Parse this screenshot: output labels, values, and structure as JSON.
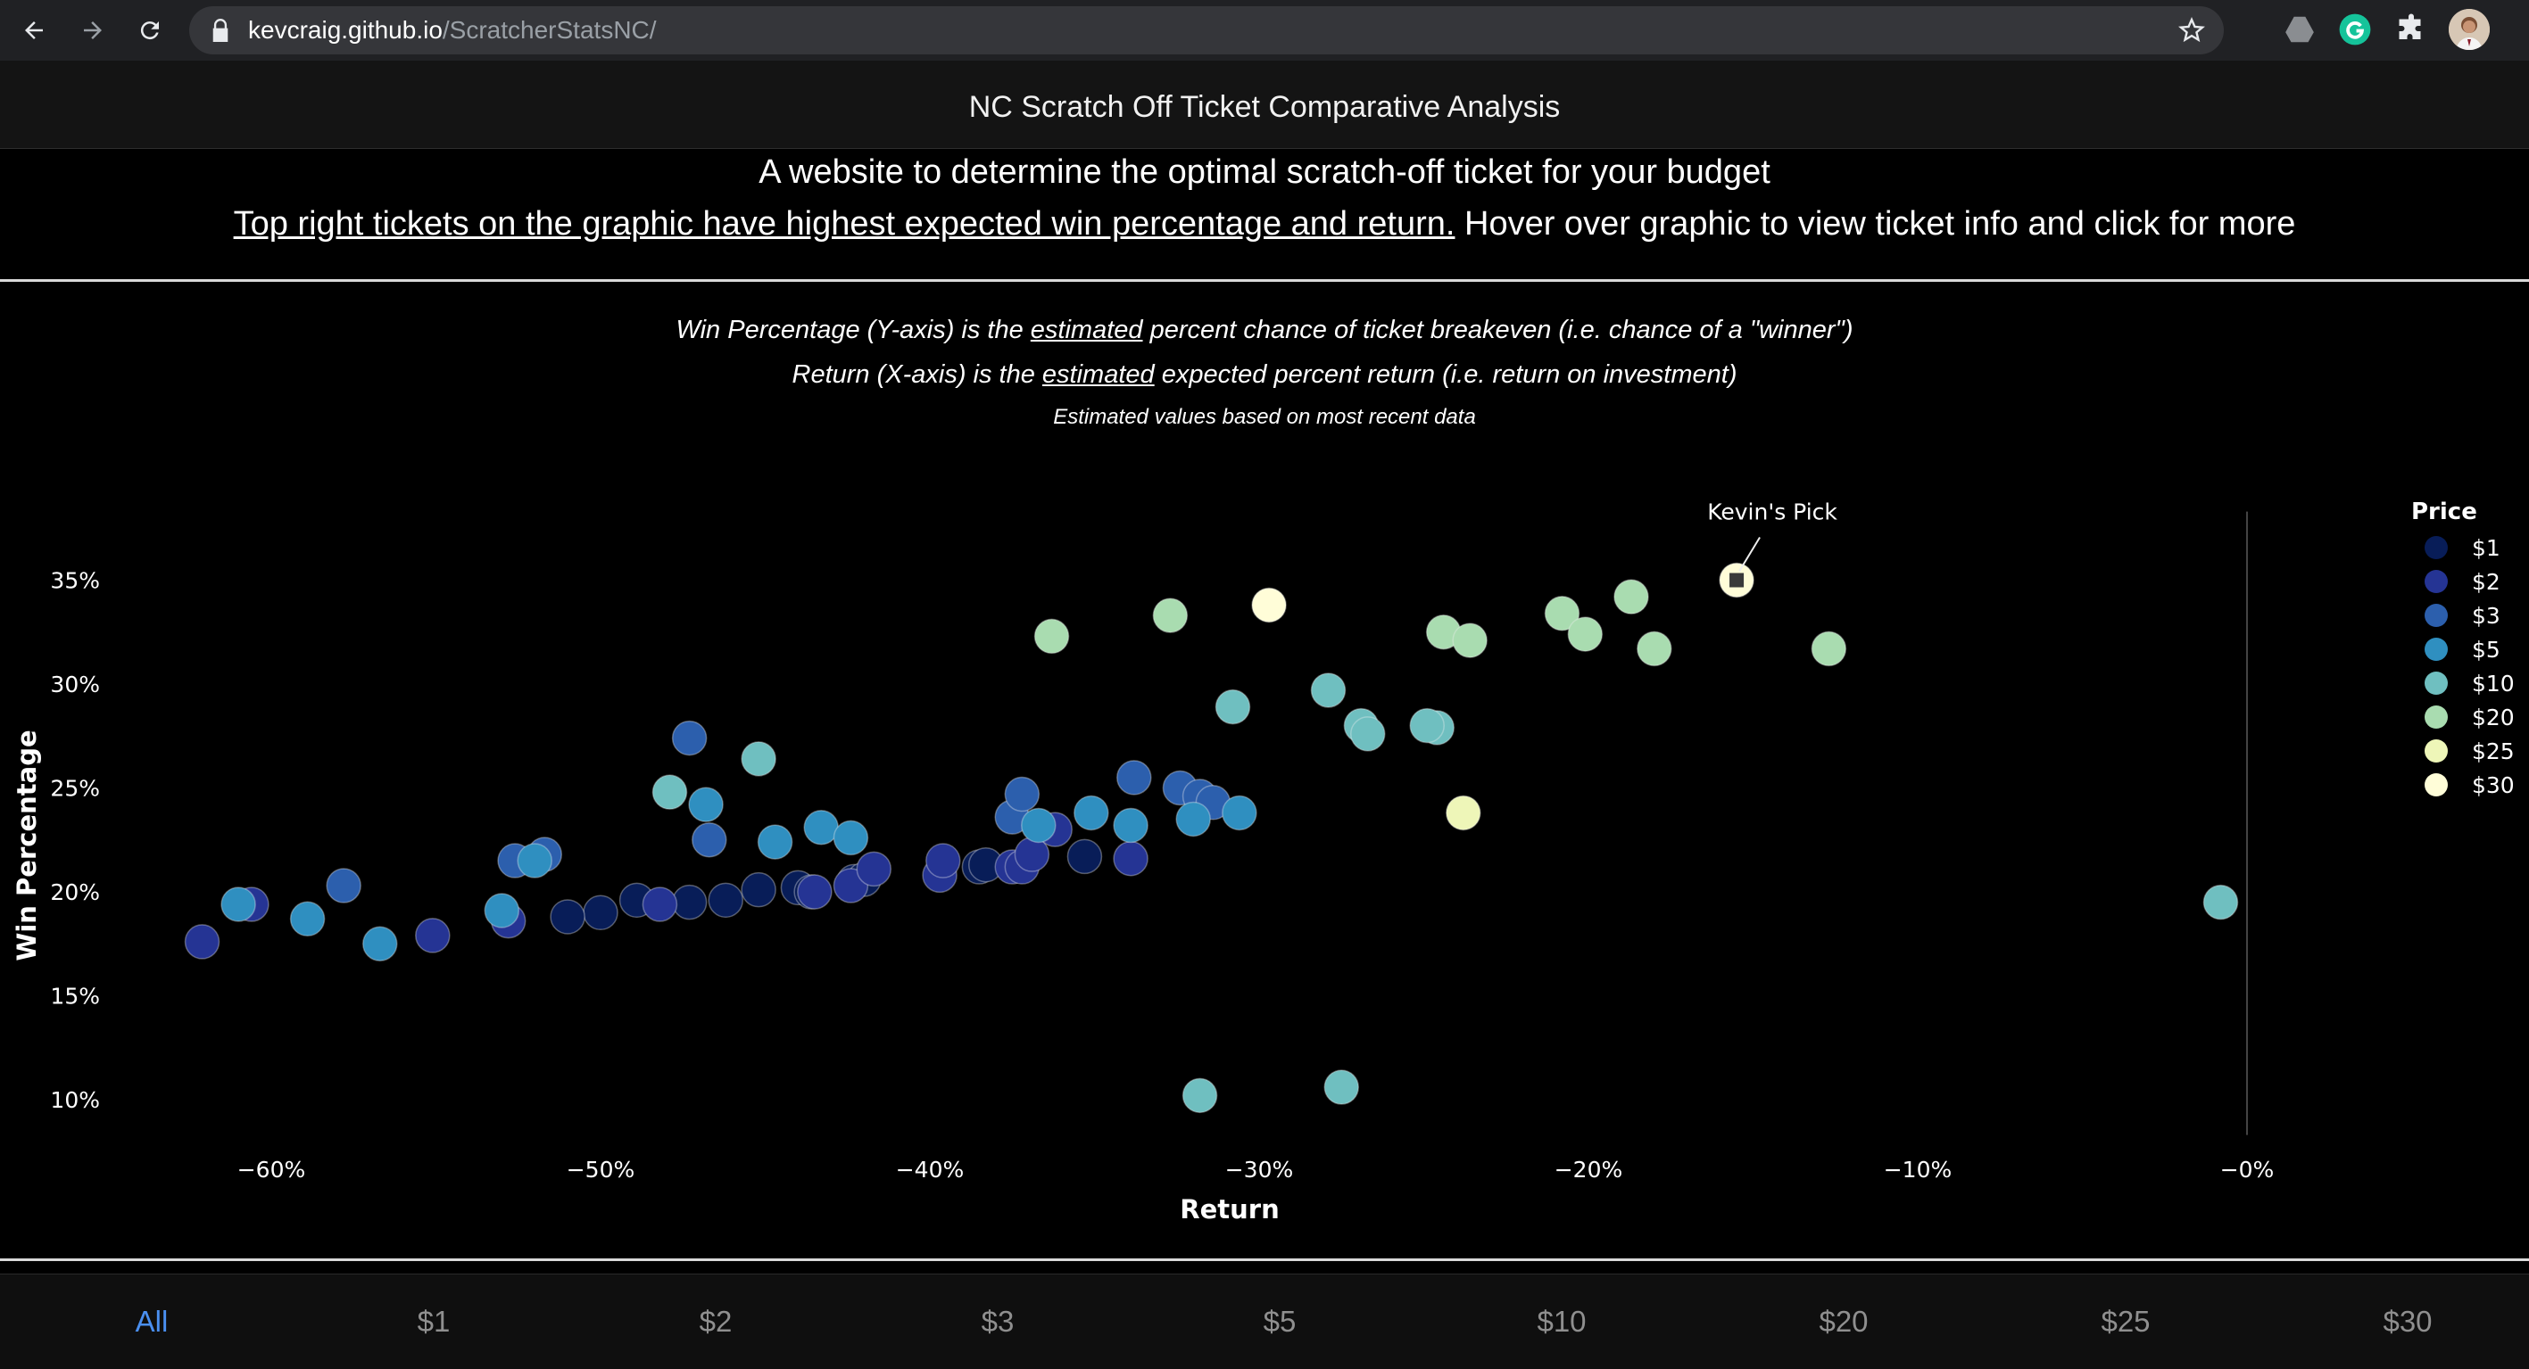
{
  "browser": {
    "url_host": "kevcraig.github.io",
    "url_path": "/ScratcherStatsNC/"
  },
  "header": {
    "title": "NC Scratch Off Ticket Comparative Analysis",
    "subtitle": "A website to determine the optimal scratch-off ticket for your budget",
    "instruction_underlined": "Top right tickets on the graphic have highest expected win percentage and return.",
    "instruction_rest": " Hover over graphic to view ticket info and click for more"
  },
  "notes": {
    "y_prefix": "Win Percentage (Y-axis) is the ",
    "y_em": "estimated",
    "y_suffix": " percent chance of ticket breakeven (i.e. chance of a \"winner\")",
    "x_prefix": "Return (X-axis) is the ",
    "x_em": "estimated",
    "x_suffix": " expected percent return (i.e. return on investment)",
    "basis": "Estimated values based on most recent data"
  },
  "tabs": [
    {
      "label": "All",
      "active": true
    },
    {
      "label": "$1",
      "active": false
    },
    {
      "label": "$2",
      "active": false
    },
    {
      "label": "$3",
      "active": false
    },
    {
      "label": "$5",
      "active": false
    },
    {
      "label": "$10",
      "active": false
    },
    {
      "label": "$20",
      "active": false
    },
    {
      "label": "$25",
      "active": false
    },
    {
      "label": "$30",
      "active": false
    }
  ],
  "chart_data": {
    "type": "scatter",
    "xlabel": "Return",
    "ylabel": "Win Percentage",
    "xlim": [
      -63,
      1
    ],
    "ylim": [
      7,
      39
    ],
    "x_ticks": [
      -60,
      -50,
      -40,
      -30,
      -20,
      -10,
      0
    ],
    "x_tick_labels": [
      "−60%",
      "−50%",
      "−40%",
      "−30%",
      "−20%",
      "−10%",
      "−0%"
    ],
    "y_ticks": [
      10,
      15,
      20,
      25,
      30,
      35
    ],
    "y_tick_labels": [
      "10%",
      "15%",
      "20%",
      "25%",
      "30%",
      "35%"
    ],
    "grid": false,
    "legend": {
      "title": "Price",
      "position": "right"
    },
    "annotation": {
      "text": "Kevin's Pick",
      "x": -15.5,
      "y": 35.0,
      "series": "$30"
    },
    "series": [
      {
        "name": "$1",
        "color": "#081d58",
        "points": [
          [
            -48.9,
            19.6
          ],
          [
            -47.3,
            19.5
          ],
          [
            -46.2,
            19.6
          ],
          [
            -50.0,
            19.0
          ],
          [
            -45.2,
            20.1
          ],
          [
            -44.0,
            20.2
          ],
          [
            -43.6,
            20.0
          ],
          [
            -42.3,
            20.5
          ],
          [
            -42.0,
            20.6
          ],
          [
            -38.5,
            21.2
          ],
          [
            -38.3,
            21.3
          ],
          [
            -35.3,
            21.7
          ],
          [
            -51.0,
            18.8
          ]
        ]
      },
      {
        "name": "$2",
        "color": "#253494",
        "points": [
          [
            -62.1,
            17.6
          ],
          [
            -60.6,
            19.4
          ],
          [
            -55.1,
            17.9
          ],
          [
            -52.8,
            18.6
          ],
          [
            -48.2,
            19.4
          ],
          [
            -43.5,
            20.0
          ],
          [
            -42.4,
            20.3
          ],
          [
            -41.7,
            21.1
          ],
          [
            -39.7,
            20.8
          ],
          [
            -39.6,
            21.5
          ],
          [
            -37.5,
            21.2
          ],
          [
            -37.2,
            21.2
          ],
          [
            -36.9,
            21.8
          ],
          [
            -33.9,
            21.6
          ],
          [
            -36.2,
            23.0
          ]
        ]
      },
      {
        "name": "$3",
        "color": "#2c5fad",
        "points": [
          [
            -57.8,
            20.3
          ],
          [
            -52.6,
            21.5
          ],
          [
            -51.7,
            21.8
          ],
          [
            -46.7,
            22.5
          ],
          [
            -47.3,
            27.4
          ],
          [
            -37.5,
            23.6
          ],
          [
            -37.2,
            24.7
          ],
          [
            -33.8,
            25.5
          ],
          [
            -32.4,
            25.0
          ],
          [
            -31.8,
            24.6
          ],
          [
            -31.4,
            24.3
          ]
        ]
      },
      {
        "name": "$5",
        "color": "#2f8fc0",
        "points": [
          [
            -61.0,
            19.4
          ],
          [
            -58.9,
            18.7
          ],
          [
            -56.7,
            17.5
          ],
          [
            -53.0,
            19.1
          ],
          [
            -52.0,
            21.5
          ],
          [
            -46.8,
            24.2
          ],
          [
            -44.7,
            22.4
          ],
          [
            -43.3,
            23.1
          ],
          [
            -42.4,
            22.6
          ],
          [
            -36.7,
            23.2
          ],
          [
            -35.1,
            23.8
          ],
          [
            -33.9,
            23.2
          ],
          [
            -32.0,
            23.5
          ],
          [
            -30.6,
            23.8
          ]
        ]
      },
      {
        "name": "$10",
        "color": "#6fbfc0",
        "points": [
          [
            -47.9,
            24.8
          ],
          [
            -45.2,
            26.4
          ],
          [
            -31.8,
            10.2
          ],
          [
            -30.8,
            28.9
          ],
          [
            -27.9,
            29.7
          ],
          [
            -26.9,
            28.0
          ],
          [
            -26.7,
            27.6
          ],
          [
            -24.6,
            27.9
          ],
          [
            -24.9,
            28.0
          ],
          [
            -27.5,
            10.6
          ],
          [
            -0.8,
            19.5
          ]
        ]
      },
      {
        "name": "$20",
        "color": "#a9dcb0",
        "points": [
          [
            -36.3,
            32.3
          ],
          [
            -32.7,
            33.3
          ],
          [
            -24.4,
            32.5
          ],
          [
            -23.6,
            32.1
          ],
          [
            -20.8,
            33.4
          ],
          [
            -20.1,
            32.4
          ],
          [
            -18.7,
            34.2
          ],
          [
            -18.0,
            31.7
          ],
          [
            -12.7,
            31.7
          ]
        ]
      },
      {
        "name": "$25",
        "color": "#eef6b8",
        "points": [
          [
            -23.8,
            23.8
          ]
        ]
      },
      {
        "name": "$30",
        "color": "#fffdd8",
        "points": [
          [
            -29.7,
            33.8
          ],
          [
            -15.5,
            35.0
          ]
        ]
      }
    ]
  }
}
